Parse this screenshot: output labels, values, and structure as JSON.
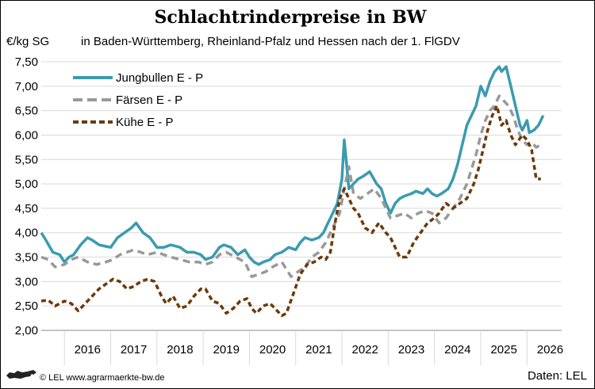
{
  "chart_data": {
    "type": "line",
    "title": "Schlachtrinderpreise in BW",
    "subtitle": "in Baden-Württemberg, Rheinland-Pfalz und Hessen nach der 1. FlGDV",
    "ylabel": "€/kg SG",
    "ylim": [
      2.0,
      7.5
    ],
    "yticks": [
      "2,00",
      "2,50",
      "3,00",
      "3,50",
      "4,00",
      "4,50",
      "5,00",
      "5,50",
      "6,00",
      "6,50",
      "7,00",
      "7,50"
    ],
    "xlim": [
      2015.5,
      2026.75
    ],
    "xticks": [
      "2016",
      "2017",
      "2018",
      "2019",
      "2020",
      "2021",
      "2022",
      "2023",
      "2024",
      "2025",
      "2026"
    ],
    "grid": true,
    "legend_position": "top-left",
    "series": [
      {
        "name": "Jungbullen E - P",
        "color": "#3a9bb0",
        "style": "solid",
        "x": [
          2015.5,
          2015.6,
          2015.75,
          2015.9,
          2016.0,
          2016.1,
          2016.2,
          2016.35,
          2016.5,
          2016.6,
          2016.75,
          2016.9,
          2017.0,
          2017.15,
          2017.3,
          2017.45,
          2017.55,
          2017.7,
          2017.85,
          2018.0,
          2018.15,
          2018.3,
          2018.5,
          2018.65,
          2018.8,
          2018.95,
          2019.05,
          2019.2,
          2019.35,
          2019.45,
          2019.6,
          2019.75,
          2019.9,
          2020.0,
          2020.1,
          2020.2,
          2020.3,
          2020.45,
          2020.55,
          2020.7,
          2020.85,
          2021.0,
          2021.1,
          2021.2,
          2021.35,
          2021.5,
          2021.6,
          2021.7,
          2021.8,
          2021.9,
          2022.0,
          2022.05,
          2022.1,
          2022.15,
          2022.25,
          2022.35,
          2022.45,
          2022.6,
          2022.75,
          2022.85,
          2022.95,
          2023.05,
          2023.15,
          2023.25,
          2023.35,
          2023.5,
          2023.6,
          2023.75,
          2023.85,
          2023.95,
          2024.05,
          2024.15,
          2024.3,
          2024.4,
          2024.5,
          2024.6,
          2024.7,
          2024.8,
          2024.9,
          2025.0,
          2025.1,
          2025.2,
          2025.3,
          2025.4,
          2025.45,
          2025.55,
          2025.65,
          2025.75,
          2025.85,
          2025.9,
          2026.0,
          2026.05,
          2026.15,
          2026.25,
          2026.35
        ],
        "values": [
          4.0,
          3.85,
          3.6,
          3.55,
          3.4,
          3.5,
          3.55,
          3.75,
          3.9,
          3.85,
          3.75,
          3.72,
          3.7,
          3.9,
          4.0,
          4.1,
          4.2,
          4.0,
          3.9,
          3.7,
          3.7,
          3.75,
          3.7,
          3.6,
          3.6,
          3.55,
          3.45,
          3.5,
          3.7,
          3.75,
          3.7,
          3.55,
          3.65,
          3.5,
          3.4,
          3.35,
          3.4,
          3.45,
          3.55,
          3.6,
          3.7,
          3.65,
          3.8,
          3.9,
          3.85,
          3.9,
          4.0,
          4.2,
          4.4,
          4.6,
          5.1,
          5.9,
          5.4,
          4.9,
          5.0,
          5.1,
          5.15,
          5.25,
          5.0,
          4.9,
          4.6,
          4.4,
          4.6,
          4.7,
          4.75,
          4.8,
          4.85,
          4.8,
          4.9,
          4.8,
          4.75,
          4.8,
          4.9,
          5.1,
          5.4,
          5.8,
          6.2,
          6.4,
          6.6,
          7.0,
          6.8,
          7.1,
          7.3,
          7.4,
          7.3,
          7.4,
          7.0,
          6.6,
          6.2,
          6.1,
          6.3,
          6.05,
          6.1,
          6.2,
          6.4
        ]
      },
      {
        "name": "Färsen E - P",
        "color": "#999999",
        "style": "dashed",
        "x": [
          2015.5,
          2015.65,
          2015.8,
          2016.0,
          2016.15,
          2016.3,
          2016.5,
          2016.7,
          2016.9,
          2017.05,
          2017.2,
          2017.35,
          2017.5,
          2017.65,
          2017.8,
          2018.0,
          2018.15,
          2018.3,
          2018.5,
          2018.7,
          2018.9,
          2019.05,
          2019.2,
          2019.35,
          2019.5,
          2019.7,
          2019.9,
          2020.05,
          2020.2,
          2020.35,
          2020.5,
          2020.7,
          2020.9,
          2021.05,
          2021.2,
          2021.35,
          2021.5,
          2021.65,
          2021.8,
          2021.95,
          2022.05,
          2022.15,
          2022.25,
          2022.4,
          2022.55,
          2022.7,
          2022.85,
          2022.95,
          2023.05,
          2023.2,
          2023.35,
          2023.5,
          2023.65,
          2023.8,
          2023.95,
          2024.1,
          2024.25,
          2024.4,
          2024.55,
          2024.7,
          2024.8,
          2024.9,
          2025.0,
          2025.1,
          2025.2,
          2025.3,
          2025.4,
          2025.5,
          2025.6,
          2025.7,
          2025.8,
          2025.9,
          2026.0,
          2026.1,
          2026.2,
          2026.3
        ],
        "values": [
          3.5,
          3.45,
          3.3,
          3.35,
          3.45,
          3.5,
          3.4,
          3.35,
          3.4,
          3.45,
          3.55,
          3.6,
          3.65,
          3.6,
          3.55,
          3.6,
          3.55,
          3.5,
          3.45,
          3.4,
          3.4,
          3.35,
          3.4,
          3.55,
          3.6,
          3.5,
          3.4,
          3.1,
          3.15,
          3.2,
          3.3,
          3.4,
          3.1,
          3.2,
          3.3,
          3.5,
          3.6,
          3.8,
          4.1,
          4.4,
          4.9,
          5.35,
          4.8,
          4.7,
          4.8,
          4.9,
          4.7,
          4.5,
          4.3,
          4.35,
          4.4,
          4.3,
          4.4,
          4.45,
          4.4,
          4.2,
          4.3,
          4.5,
          4.7,
          5.0,
          5.3,
          5.6,
          6.0,
          6.3,
          6.5,
          6.6,
          6.8,
          6.7,
          6.6,
          6.4,
          6.1,
          5.9,
          5.8,
          5.85,
          5.75,
          5.8
        ]
      },
      {
        "name": "Kühe E - P",
        "color": "#6b3a0a",
        "style": "dashed",
        "x": [
          2015.5,
          2015.65,
          2015.8,
          2016.0,
          2016.15,
          2016.3,
          2016.45,
          2016.6,
          2016.75,
          2016.9,
          2017.05,
          2017.2,
          2017.35,
          2017.5,
          2017.65,
          2017.8,
          2017.95,
          2018.1,
          2018.2,
          2018.35,
          2018.5,
          2018.65,
          2018.8,
          2018.95,
          2019.05,
          2019.2,
          2019.35,
          2019.5,
          2019.65,
          2019.8,
          2019.95,
          2020.05,
          2020.15,
          2020.3,
          2020.45,
          2020.6,
          2020.7,
          2020.8,
          2020.95,
          2021.1,
          2021.25,
          2021.4,
          2021.55,
          2021.65,
          2021.75,
          2021.85,
          2021.95,
          2022.05,
          2022.15,
          2022.25,
          2022.35,
          2022.5,
          2022.65,
          2022.8,
          2022.95,
          2023.05,
          2023.15,
          2023.25,
          2023.4,
          2023.55,
          2023.7,
          2023.85,
          2024.0,
          2024.1,
          2024.25,
          2024.4,
          2024.55,
          2024.7,
          2024.85,
          2024.95,
          2025.05,
          2025.15,
          2025.25,
          2025.35,
          2025.45,
          2025.55,
          2025.65,
          2025.75,
          2025.9,
          2026.0,
          2026.1,
          2026.2,
          2026.3
        ],
        "values": [
          2.6,
          2.62,
          2.5,
          2.6,
          2.55,
          2.4,
          2.55,
          2.7,
          2.85,
          2.95,
          3.05,
          3.0,
          2.85,
          2.9,
          3.0,
          3.05,
          3.0,
          2.7,
          2.55,
          2.7,
          2.45,
          2.5,
          2.7,
          2.85,
          2.85,
          2.6,
          2.55,
          2.35,
          2.45,
          2.6,
          2.65,
          2.45,
          2.35,
          2.5,
          2.55,
          2.4,
          2.3,
          2.35,
          2.75,
          3.15,
          3.35,
          3.4,
          3.5,
          3.45,
          3.6,
          4.2,
          4.7,
          4.9,
          4.7,
          4.5,
          4.4,
          4.1,
          4.0,
          4.2,
          4.0,
          3.9,
          3.7,
          3.5,
          3.5,
          3.8,
          4.0,
          4.2,
          4.3,
          4.4,
          4.6,
          4.5,
          4.6,
          4.7,
          5.0,
          5.3,
          5.7,
          6.1,
          6.4,
          6.6,
          6.2,
          6.3,
          6.0,
          5.8,
          6.0,
          5.9,
          5.7,
          5.1,
          5.1
        ]
      }
    ]
  },
  "footer": {
    "copyright": "© LEL www.agrarmaerkte-bw.de",
    "source": "Daten: LEL"
  }
}
